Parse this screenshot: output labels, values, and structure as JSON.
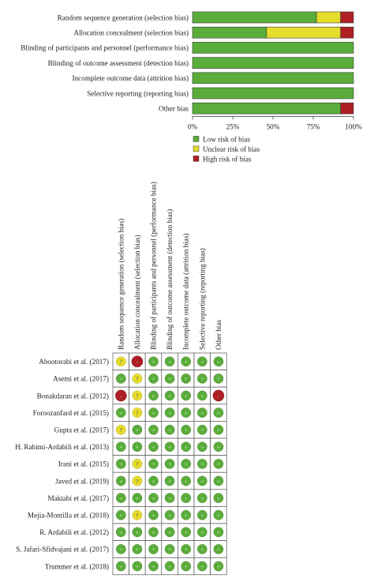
{
  "colors": {
    "low": "#5aad3a",
    "unclear": "#e6dc2c",
    "high": "#ae1f24",
    "border": "#3a3a3a"
  },
  "chart_data": [
    {
      "type": "bar",
      "stacked": true,
      "orientation": "horizontal",
      "title": "",
      "xlabel": "",
      "ylabel": "",
      "categories": [
        "Random sequence generation (selection bias)",
        "Allocation concealment (selection bias)",
        "Blinding of participants and personnel (performance bias)",
        "Blinding of outcome assessment (detection bias)",
        "Incomplete outcome data (attrition bias)",
        "Selective reporting (reporting bias)",
        "Other bias"
      ],
      "series": [
        {
          "name": "Low risk of bias",
          "color": "#5aad3a",
          "values": [
            77,
            46,
            100,
            100,
            100,
            100,
            92
          ]
        },
        {
          "name": "Unclear risk of bias",
          "color": "#e6dc2c",
          "values": [
            15,
            46,
            0,
            0,
            0,
            0,
            0
          ]
        },
        {
          "name": "High risk of bias",
          "color": "#ae1f24",
          "values": [
            8,
            8,
            0,
            0,
            0,
            0,
            8
          ]
        }
      ],
      "x_ticks": [
        "0%",
        "25%",
        "50%",
        "75%",
        "100%"
      ],
      "xlim": [
        0,
        100
      ],
      "legend_position": "bottom-right"
    },
    {
      "type": "table",
      "title": "",
      "columns": [
        "Random sequence generation (selection bias)",
        "Allocation concealment (selection bias)",
        "Blinding of participants and personnel (performance bias)",
        "Blinding of outcome assessment (detection bias)",
        "Incomplete outcome data (attrition bias)",
        "Selective reporting (reporting bias)",
        "Other bias"
      ],
      "rows": [
        {
          "study": "Abootorabi et al. (2017)",
          "ratings": [
            "?",
            "-",
            "+",
            "+",
            "+",
            "+",
            "+"
          ]
        },
        {
          "study": "Asemi et al. (2017)",
          "ratings": [
            "+",
            "?",
            "+",
            "+",
            "+",
            "+",
            "+"
          ]
        },
        {
          "study": "Bonakdaran et al. (2012)",
          "ratings": [
            "-",
            "?",
            "+",
            "+",
            "+",
            "+",
            "-"
          ]
        },
        {
          "study": "Foroozanfard et al. (2015)",
          "ratings": [
            "+",
            "?",
            "+",
            "+",
            "+",
            "+",
            "+"
          ]
        },
        {
          "study": "Gupta et al. (2017)",
          "ratings": [
            "?",
            "+",
            "+",
            "+",
            "+",
            "+",
            "+"
          ]
        },
        {
          "study": "H. Rahimi-Ardabili et al. (2013)",
          "ratings": [
            "+",
            "+",
            "+",
            "+",
            "+",
            "+",
            "+"
          ]
        },
        {
          "study": "Irani et al. (2015)",
          "ratings": [
            "+",
            "?",
            "+",
            "+",
            "+",
            "+",
            "+"
          ]
        },
        {
          "study": "Javed et al. (2019)",
          "ratings": [
            "+",
            "?",
            "+",
            "+",
            "+",
            "+",
            "+"
          ]
        },
        {
          "study": "Maktabi et al. (2017)",
          "ratings": [
            "+",
            "+",
            "+",
            "+",
            "+",
            "+",
            "+"
          ]
        },
        {
          "study": "Mejia-Montilla et al. (2018)",
          "ratings": [
            "+",
            "?",
            "+",
            "+",
            "+",
            "+",
            "+"
          ]
        },
        {
          "study": "R. Ardabili et al. (2012)",
          "ratings": [
            "+",
            "+",
            "+",
            "+",
            "+",
            "+",
            "+"
          ]
        },
        {
          "study": "S. Jafari-Sfidvajani et al. (2017)",
          "ratings": [
            "+",
            "+",
            "+",
            "+",
            "+",
            "+",
            "+"
          ]
        },
        {
          "study": "Trummer et al. (2018)",
          "ratings": [
            "+",
            "+",
            "+",
            "+",
            "+",
            "+",
            "+"
          ]
        }
      ]
    }
  ]
}
